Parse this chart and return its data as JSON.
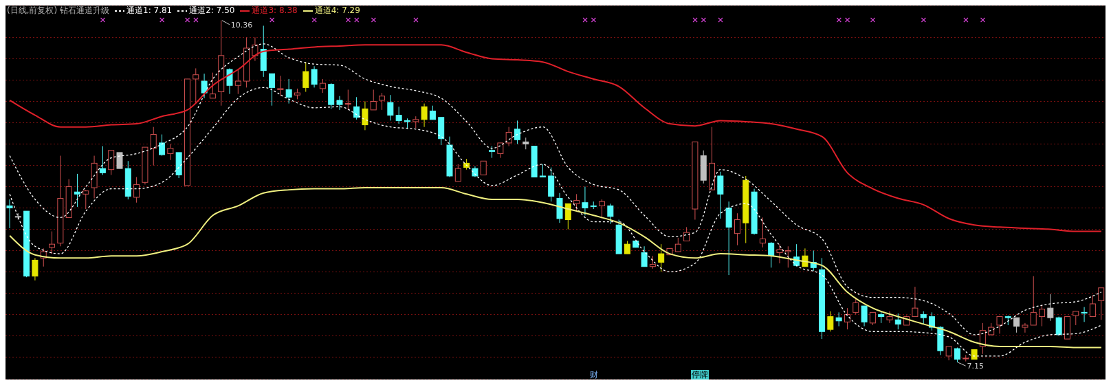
{
  "chart_data": {
    "type": "candlestick",
    "title": "(日线,前复权) 钻石通道升级",
    "categories": [
      null,
      null,
      null,
      null,
      null,
      null,
      null,
      null,
      null,
      null,
      null,
      null,
      null,
      null,
      null,
      null,
      null,
      null,
      null,
      null,
      null,
      null,
      null,
      null,
      null,
      null,
      null,
      null,
      null,
      null,
      null,
      null,
      null,
      null,
      null,
      null,
      null,
      null,
      null,
      null,
      null,
      null,
      null,
      null,
      null,
      null,
      null,
      null,
      null,
      null,
      null,
      null,
      null,
      null,
      null,
      null,
      null,
      null,
      null,
      null,
      null,
      null,
      null,
      null,
      null,
      null,
      null,
      null,
      null,
      null,
      null,
      null,
      null,
      null,
      null,
      null,
      null,
      null,
      null,
      null,
      null,
      null,
      null,
      null,
      null,
      null,
      null,
      null,
      null,
      null,
      null,
      null,
      null,
      null,
      null,
      null,
      null,
      null,
      null,
      null,
      null,
      null,
      null,
      null,
      null,
      null,
      null,
      null,
      null,
      null,
      null,
      null,
      null,
      null,
      null,
      null,
      null,
      null,
      null,
      null,
      null,
      null,
      null,
      null,
      null,
      null,
      null,
      null,
      null,
      null
    ],
    "ohlc": [
      [
        8.62,
        8.68,
        8.41,
        8.6
      ],
      [
        8.52,
        8.55,
        8.49,
        8.52
      ],
      [
        8.57,
        8.57,
        7.95,
        7.96
      ],
      [
        8.11,
        8.13,
        7.92,
        7.96
      ],
      [
        8.13,
        8.22,
        8.05,
        8.19
      ],
      [
        8.23,
        8.38,
        8.17,
        8.26
      ],
      [
        8.27,
        9.09,
        8.24,
        8.69
      ],
      [
        8.51,
        8.87,
        8.51,
        8.8
      ],
      [
        8.75,
        8.92,
        8.61,
        8.73
      ],
      [
        8.73,
        8.77,
        8.59,
        8.76
      ],
      [
        8.79,
        9.09,
        8.69,
        9.02
      ],
      [
        8.97,
        9.18,
        8.91,
        8.93
      ],
      [
        8.96,
        9.14,
        8.91,
        9.14
      ],
      [
        9.12,
        9.12,
        8.97,
        8.97
      ],
      [
        8.97,
        9.04,
        8.68,
        8.71
      ],
      [
        8.7,
        8.89,
        8.65,
        8.82
      ],
      [
        8.84,
        9.17,
        8.82,
        9.17
      ],
      [
        9.16,
        9.36,
        9.0,
        9.29
      ],
      [
        9.21,
        9.29,
        9.09,
        9.1
      ],
      [
        9.11,
        9.2,
        9.05,
        9.16
      ],
      [
        9.12,
        9.12,
        8.88,
        8.91
      ],
      [
        8.81,
        9.81,
        8.81,
        9.81
      ],
      [
        9.81,
        9.91,
        9.58,
        9.85
      ],
      [
        9.79,
        9.86,
        9.63,
        9.68
      ],
      [
        9.63,
        9.87,
        9.63,
        9.67
      ],
      [
        9.69,
        10.36,
        9.56,
        10.03
      ],
      [
        9.9,
        9.91,
        9.67,
        9.75
      ],
      [
        9.75,
        9.9,
        9.67,
        9.79
      ],
      [
        9.79,
        10.2,
        9.73,
        10.1
      ],
      [
        10.03,
        10.2,
        9.98,
        10.13
      ],
      [
        10.09,
        10.31,
        9.83,
        9.89
      ],
      [
        9.86,
        9.86,
        9.56,
        9.73
      ],
      [
        9.71,
        9.84,
        9.65,
        9.72
      ],
      [
        9.71,
        9.81,
        9.58,
        9.64
      ],
      [
        9.66,
        9.72,
        9.62,
        9.68
      ],
      [
        9.88,
        9.97,
        9.69,
        9.73
      ],
      [
        9.9,
        9.93,
        9.73,
        9.76
      ],
      [
        9.72,
        9.81,
        9.68,
        9.77
      ],
      [
        9.76,
        9.77,
        9.53,
        9.57
      ],
      [
        9.61,
        9.65,
        9.52,
        9.57
      ],
      [
        9.58,
        9.71,
        9.52,
        9.58
      ],
      [
        9.55,
        9.64,
        9.43,
        9.45
      ],
      [
        9.53,
        9.6,
        9.33,
        9.38
      ],
      [
        9.52,
        9.71,
        9.52,
        9.6
      ],
      [
        9.61,
        9.68,
        9.52,
        9.65
      ],
      [
        9.59,
        9.66,
        9.42,
        9.47
      ],
      [
        9.47,
        9.55,
        9.39,
        9.42
      ],
      [
        9.42,
        9.44,
        9.34,
        9.41
      ],
      [
        9.41,
        9.46,
        9.35,
        9.43
      ],
      [
        9.55,
        9.58,
        9.36,
        9.43
      ],
      [
        9.51,
        9.56,
        9.43,
        9.43
      ],
      [
        9.45,
        9.45,
        9.19,
        9.25
      ],
      [
        9.19,
        9.27,
        8.89,
        8.9
      ],
      [
        8.85,
        9.01,
        8.85,
        8.97
      ],
      [
        9.02,
        9.06,
        8.96,
        8.98
      ],
      [
        8.97,
        8.99,
        8.89,
        8.9
      ],
      [
        8.91,
        9.04,
        8.91,
        9.04
      ],
      [
        9.14,
        9.18,
        9.07,
        9.13
      ],
      [
        9.11,
        9.21,
        9.07,
        9.21
      ],
      [
        9.21,
        9.36,
        9.18,
        9.31
      ],
      [
        9.34,
        9.42,
        9.2,
        9.24
      ],
      [
        9.22,
        9.26,
        9.15,
        9.2
      ],
      [
        9.18,
        9.18,
        8.89,
        8.89
      ],
      [
        8.9,
        9.01,
        8.89,
        8.89
      ],
      [
        8.9,
        8.98,
        8.66,
        8.71
      ],
      [
        8.69,
        8.74,
        8.46,
        8.5
      ],
      [
        8.64,
        8.64,
        8.4,
        8.49
      ],
      [
        8.64,
        8.73,
        8.57,
        8.67
      ],
      [
        8.65,
        8.8,
        8.53,
        8.6
      ],
      [
        8.62,
        8.66,
        8.59,
        8.62
      ],
      [
        8.62,
        8.68,
        8.5,
        8.66
      ],
      [
        8.62,
        8.64,
        8.45,
        8.52
      ],
      [
        8.44,
        8.49,
        8.17,
        8.17
      ],
      [
        8.26,
        8.29,
        8.17,
        8.17
      ],
      [
        8.29,
        8.29,
        8.23,
        8.23
      ],
      [
        8.18,
        8.24,
        8.05,
        8.05
      ],
      [
        8.05,
        8.15,
        8.03,
        8.07
      ],
      [
        8.17,
        8.26,
        8.0,
        8.09
      ],
      [
        8.16,
        8.22,
        8.16,
        8.22
      ],
      [
        8.19,
        8.32,
        8.19,
        8.26
      ],
      [
        8.29,
        8.42,
        8.29,
        8.37
      ],
      [
        8.59,
        9.22,
        8.49,
        9.22
      ],
      [
        9.09,
        9.14,
        8.83,
        8.86
      ],
      [
        8.77,
        9.36,
        8.77,
        9.02
      ],
      [
        8.9,
        8.94,
        8.5,
        8.73
      ],
      [
        8.6,
        8.66,
        7.97,
        8.42
      ],
      [
        8.36,
        8.55,
        8.25,
        8.49
      ],
      [
        8.86,
        8.9,
        8.27,
        8.46
      ],
      [
        8.75,
        8.78,
        8.35,
        8.36
      ],
      [
        8.27,
        8.51,
        8.23,
        8.31
      ],
      [
        8.27,
        8.28,
        8.04,
        8.15
      ],
      [
        8.18,
        8.26,
        8.08,
        8.21
      ],
      [
        8.19,
        8.24,
        8.04,
        8.2
      ],
      [
        8.14,
        8.26,
        8.05,
        8.06
      ],
      [
        8.15,
        8.22,
        8.05,
        8.05
      ],
      [
        8.09,
        8.2,
        8.01,
        8.04
      ],
      [
        8.02,
        8.13,
        7.37,
        7.44
      ],
      [
        7.58,
        7.63,
        7.44,
        7.46
      ],
      [
        7.57,
        7.62,
        7.49,
        7.54
      ],
      [
        7.53,
        7.66,
        7.46,
        7.6
      ],
      [
        7.62,
        7.76,
        7.6,
        7.71
      ],
      [
        7.68,
        7.68,
        7.49,
        7.53
      ],
      [
        7.52,
        7.62,
        7.5,
        7.62
      ],
      [
        7.6,
        7.63,
        7.52,
        7.58
      ],
      [
        7.55,
        7.63,
        7.52,
        7.58
      ],
      [
        7.55,
        7.61,
        7.46,
        7.51
      ],
      [
        7.5,
        7.59,
        7.5,
        7.58
      ],
      [
        7.58,
        7.86,
        7.58,
        7.66
      ],
      [
        7.6,
        7.63,
        7.51,
        7.57
      ],
      [
        7.58,
        7.62,
        7.45,
        7.48
      ],
      [
        7.48,
        7.49,
        7.22,
        7.26
      ],
      [
        7.21,
        7.3,
        7.17,
        7.3
      ],
      [
        7.28,
        7.29,
        7.15,
        7.18
      ],
      [
        7.19,
        7.22,
        7.16,
        7.19
      ],
      [
        7.27,
        7.27,
        7.18,
        7.18
      ],
      [
        7.3,
        7.52,
        7.23,
        7.45
      ],
      [
        7.41,
        7.52,
        7.4,
        7.48
      ],
      [
        7.5,
        7.58,
        7.42,
        7.58
      ],
      [
        7.58,
        7.59,
        7.5,
        7.57
      ],
      [
        7.57,
        7.57,
        7.43,
        7.49
      ],
      [
        7.48,
        7.52,
        7.43,
        7.5
      ],
      [
        7.5,
        7.96,
        7.5,
        7.62
      ],
      [
        7.58,
        7.69,
        7.49,
        7.65
      ],
      [
        7.66,
        7.79,
        7.54,
        7.57
      ],
      [
        7.57,
        7.58,
        7.4,
        7.41
      ],
      [
        7.37,
        7.58,
        7.37,
        7.58
      ],
      [
        7.59,
        7.63,
        7.5,
        7.63
      ],
      [
        7.62,
        7.67,
        7.53,
        7.62
      ],
      [
        7.58,
        7.78,
        7.58,
        7.7
      ],
      [
        7.73,
        7.85,
        7.55,
        7.85
      ]
    ],
    "colors": [
      "#54fcfc",
      "#c0c0c0",
      "#54fcfc",
      "#e6e600",
      "#d05050",
      "#d05050",
      "#d05050",
      "#d05050",
      "#54fcfc",
      "#d05050",
      "#d05050",
      "#54fcfc",
      "#d05050",
      "#c0c0c0",
      "#54fcfc",
      "#d05050",
      "#d05050",
      "#d05050",
      "#54fcfc",
      "#d05050",
      "#54fcfc",
      "#d05050",
      "#d05050",
      "#54fcfc",
      "#d05050",
      "#d05050",
      "#54fcfc",
      "#d05050",
      "#d05050",
      "#d05050",
      "#54fcfc",
      "#54fcfc",
      "#d05050",
      "#54fcfc",
      "#d05050",
      "#e6e600",
      "#54fcfc",
      "#d05050",
      "#54fcfc",
      "#54fcfc",
      "#d05050",
      "#54fcfc",
      "#e6e600",
      "#d05050",
      "#d05050",
      "#54fcfc",
      "#54fcfc",
      "#54fcfc",
      "#d05050",
      "#e6e600",
      "#54fcfc",
      "#54fcfc",
      "#54fcfc",
      "#d05050",
      "#e6e600",
      "#54fcfc",
      "#d05050",
      "#54fcfc",
      "#d05050",
      "#d05050",
      "#54fcfc",
      "#c0c0c0",
      "#54fcfc",
      "#54fcfc",
      "#54fcfc",
      "#54fcfc",
      "#e6e600",
      "#d05050",
      "#54fcfc",
      "#54fcfc",
      "#d05050",
      "#54fcfc",
      "#54fcfc",
      "#e6e600",
      "#54fcfc",
      "#54fcfc",
      "#d05050",
      "#e6e600",
      "#d05050",
      "#d05050",
      "#d05050",
      "#d05050",
      "#c0c0c0",
      "#d05050",
      "#54fcfc",
      "#54fcfc",
      "#d05050",
      "#e6e600",
      "#54fcfc",
      "#d05050",
      "#54fcfc",
      "#d05050",
      "#d05050",
      "#54fcfc",
      "#e6e600",
      "#54fcfc",
      "#54fcfc",
      "#e6e600",
      "#54fcfc",
      "#d05050",
      "#d05050",
      "#54fcfc",
      "#d05050",
      "#54fcfc",
      "#d05050",
      "#54fcfc",
      "#d05050",
      "#d05050",
      "#54fcfc",
      "#54fcfc",
      "#54fcfc",
      "#d05050",
      "#54fcfc",
      "#d05050",
      "#e6e600",
      "#d05050",
      "#d05050",
      "#d05050",
      "#54fcfc",
      "#c0c0c0",
      "#d05050",
      "#d05050",
      "#d05050",
      "#c0c0c0",
      "#54fcfc",
      "#d05050",
      "#d05050",
      "#54fcfc",
      "#d05050",
      "#d05050"
    ],
    "series": [
      {
        "name": "通道1: 7.81",
        "type": "line",
        "color": "#ffffff",
        "line_style": "dashed",
        "values": [
          9.09,
          null,
          null,
          8.68,
          null,
          null,
          8.51,
          null,
          null,
          8.8,
          null,
          null,
          9.07,
          null,
          null,
          9.11,
          null,
          null,
          9.2,
          null,
          null,
          9.36,
          null,
          null,
          9.81,
          null,
          null,
          10.02,
          null,
          null,
          10.14,
          null,
          null,
          10.01,
          null,
          null,
          9.95,
          null,
          null,
          9.94,
          null,
          null,
          9.81,
          null,
          null,
          9.74,
          null,
          null,
          9.7,
          null,
          null,
          9.63,
          null,
          null,
          9.41,
          null,
          null,
          9.16,
          null,
          null,
          9.29,
          null,
          null,
          9.36,
          null,
          null,
          8.98,
          null,
          null,
          8.82,
          null,
          null,
          8.77,
          null,
          null,
          8.53,
          null,
          null,
          8.33,
          null,
          null,
          8.37,
          null,
          null,
          8.96,
          null,
          null,
          8.87,
          null,
          null,
          8.66,
          null,
          null,
          8.44,
          null,
          null,
          8.31,
          null,
          null,
          7.86,
          null,
          null,
          7.76,
          null,
          null,
          7.76,
          null,
          null,
          7.73,
          null,
          null,
          7.61,
          null,
          null,
          7.41,
          null,
          null,
          7.49,
          null,
          null,
          7.64,
          null,
          null,
          7.7,
          null,
          null,
          7.72,
          null,
          null,
          7.81
        ]
      },
      {
        "name": "通道2: 7.50",
        "type": "line",
        "color": "#ffffff",
        "line_style": "dashed",
        "values": [
          8.73,
          null,
          null,
          8.24,
          null,
          null,
          8.17,
          null,
          null,
          8.57,
          null,
          null,
          8.78,
          null,
          null,
          8.78,
          null,
          null,
          8.84,
          null,
          null,
          9.07,
          null,
          null,
          9.35,
          null,
          null,
          9.63,
          null,
          null,
          9.73,
          null,
          null,
          9.62,
          null,
          null,
          9.54,
          null,
          null,
          9.55,
          null,
          null,
          9.43,
          null,
          null,
          9.36,
          null,
          null,
          9.34,
          null,
          null,
          9.27,
          null,
          null,
          9.0,
          null,
          null,
          8.81,
          null,
          null,
          8.91,
          null,
          null,
          9.01,
          null,
          null,
          8.7,
          null,
          null,
          8.47,
          null,
          null,
          8.47,
          null,
          null,
          8.19,
          null,
          null,
          8.0,
          null,
          null,
          8.08,
          null,
          null,
          8.55,
          null,
          null,
          8.64,
          null,
          null,
          8.35,
          null,
          null,
          8.06,
          null,
          null,
          7.97,
          null,
          null,
          7.59,
          null,
          null,
          7.44,
          null,
          null,
          7.44,
          null,
          null,
          7.43,
          null,
          null,
          7.39,
          null,
          null,
          7.21,
          null,
          null,
          7.21,
          null,
          null,
          7.34,
          null,
          null,
          7.41,
          null,
          null,
          7.42,
          null,
          null,
          7.5
        ]
      },
      {
        "name": "通道3: 8.38",
        "type": "line",
        "color": "#e0202a",
        "line_style": "solid",
        "values": [
          9.61,
          null,
          null,
          9.47,
          null,
          null,
          9.36,
          null,
          null,
          9.36,
          null,
          null,
          9.38,
          null,
          null,
          9.39,
          null,
          null,
          9.46,
          null,
          null,
          9.52,
          null,
          null,
          9.75,
          null,
          null,
          9.9,
          null,
          null,
          10.07,
          null,
          null,
          10.09,
          null,
          null,
          10.11,
          null,
          null,
          10.12,
          null,
          null,
          10.13,
          null,
          null,
          10.13,
          null,
          null,
          10.13,
          null,
          null,
          10.13,
          null,
          null,
          10.06,
          null,
          null,
          10.0,
          null,
          null,
          9.99,
          null,
          null,
          9.97,
          null,
          null,
          9.88,
          null,
          null,
          9.81,
          null,
          null,
          9.74,
          null,
          null,
          9.54,
          null,
          null,
          9.39,
          null,
          null,
          9.37,
          null,
          null,
          9.42,
          null,
          null,
          9.41,
          null,
          null,
          9.39,
          null,
          null,
          9.34,
          null,
          null,
          9.27,
          null,
          null,
          8.93,
          null,
          null,
          8.78,
          null,
          null,
          8.69,
          null,
          null,
          8.63,
          null,
          null,
          8.5,
          null,
          null,
          8.44,
          null,
          null,
          8.42,
          null,
          null,
          8.41,
          null,
          null,
          8.4,
          null,
          null,
          8.38,
          null,
          null,
          8.38
        ]
      },
      {
        "name": "通道4: 7.29",
        "type": "line",
        "color": "#f0f080",
        "line_style": "solid",
        "values": [
          8.34,
          null,
          null,
          8.16,
          null,
          null,
          8.13,
          null,
          null,
          8.13,
          null,
          null,
          8.15,
          null,
          null,
          8.15,
          null,
          null,
          8.19,
          null,
          null,
          8.26,
          null,
          null,
          8.53,
          null,
          null,
          8.62,
          null,
          null,
          8.74,
          null,
          null,
          8.77,
          null,
          null,
          8.78,
          null,
          null,
          8.78,
          null,
          null,
          8.79,
          null,
          null,
          8.79,
          null,
          null,
          8.79,
          null,
          null,
          8.79,
          null,
          null,
          8.73,
          null,
          null,
          8.68,
          null,
          null,
          8.68,
          null,
          null,
          8.65,
          null,
          null,
          8.59,
          null,
          null,
          8.53,
          null,
          null,
          8.46,
          null,
          null,
          8.33,
          null,
          null,
          8.17,
          null,
          null,
          8.13,
          null,
          null,
          8.17,
          null,
          null,
          8.16,
          null,
          null,
          8.15,
          null,
          null,
          8.11,
          null,
          null,
          8.06,
          null,
          null,
          7.81,
          null,
          null,
          7.66,
          null,
          null,
          7.58,
          null,
          null,
          7.51,
          null,
          null,
          7.44,
          null,
          null,
          7.34,
          null,
          null,
          7.3,
          null,
          null,
          7.3,
          null,
          null,
          7.3,
          null,
          null,
          7.29,
          null,
          null,
          7.29
        ]
      }
    ],
    "ylim": [
      6.99,
      10.5
    ],
    "yticks": [
      {
        "value": 10.2,
        "label": null
      },
      {
        "value": 10.0,
        "label": null
      },
      {
        "value": 9.8,
        "label": null
      },
      {
        "value": 9.6,
        "label": null
      },
      {
        "value": 9.4,
        "label": null
      },
      {
        "value": 9.2,
        "label": null
      },
      {
        "value": 9.0,
        "label": null
      },
      {
        "value": 8.8,
        "label": null
      },
      {
        "value": 8.6,
        "label": null
      },
      {
        "value": 8.4,
        "label": null
      },
      {
        "value": 8.2,
        "label": null
      },
      {
        "value": 8.0,
        "label": null
      },
      {
        "value": 7.8,
        "label": null
      },
      {
        "value": 7.6,
        "label": null
      },
      {
        "value": 7.4,
        "label": null
      },
      {
        "value": 7.2,
        "label": null
      }
    ],
    "grid": "y",
    "legend": "top left",
    "marker": "none",
    "annotations": [
      "10.36",
      "7.15",
      "财",
      "停牌"
    ]
  }
}
